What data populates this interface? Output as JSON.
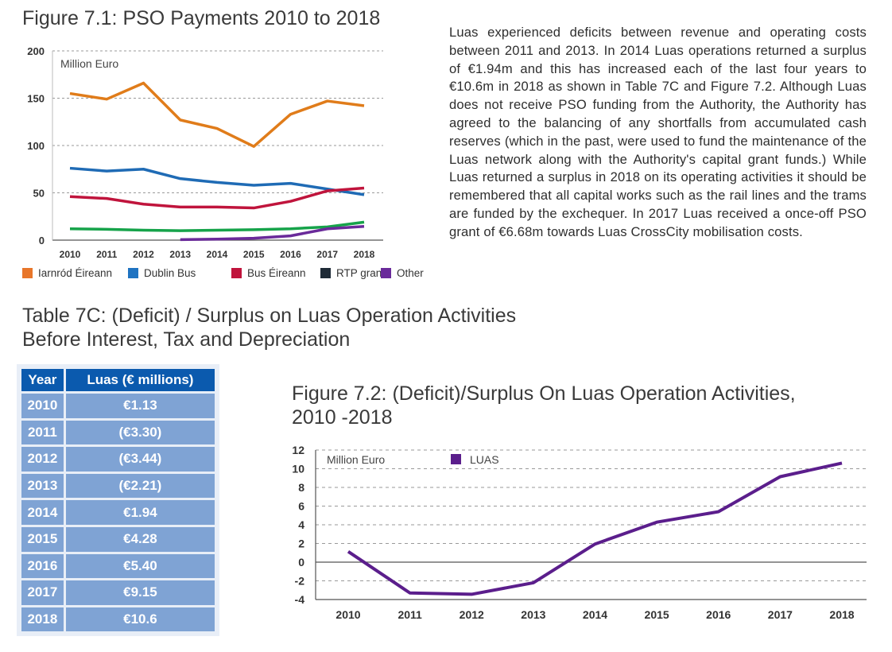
{
  "figure1": {
    "title": "Figure 7.1: PSO Payments 2010 to 2018",
    "unit_label": "Million Euro",
    "legend": [
      {
        "name": "Iarnród Éireann",
        "color": "#e8762a",
        "line_color": "#e07c1a"
      },
      {
        "name": "Dublin Bus",
        "color": "#1f73c1",
        "line_color": "#1f6bb5"
      },
      {
        "name": "Bus Éireann",
        "color": "#c0143c",
        "line_color": "#c0143c"
      },
      {
        "name": "RTP grant",
        "color": "#1e2a36",
        "line_color": "#16a34a"
      },
      {
        "name": "Other",
        "color": "#6a2a9a",
        "line_color": "#6a2a9a"
      }
    ]
  },
  "body_text": "Luas experienced deficits between revenue and operating costs between 2011 and 2013. In 2014 Luas operations returned a surplus of €1.94m and this has increased each of the last four years to €10.6m in 2018 as shown in Table 7C and Figure 7.2. Although Luas does not receive PSO funding from the Authority, the Authority has agreed to the balancing of any shortfalls from accumulated cash reserves (which in the past, were used to fund the maintenance of the Luas network along with the Authority's capital grant funds.) While Luas returned a surplus in 2018 on its operating activities it should be remembered that all capital works such as the rail lines and the trams are funded by the exchequer. In 2017 Luas received a once-off PSO grant of €6.68m towards Luas CrossCity mobilisation costs.",
  "table": {
    "title": "Table 7C: (Deficit) / Surplus on Luas Operation Activities Before Interest, Tax and Depreciation",
    "headers": [
      "Year",
      "Luas (€ millions)"
    ],
    "rows": [
      [
        "2010",
        "€1.13"
      ],
      [
        "2011",
        "(€3.30)"
      ],
      [
        "2012",
        "(€3.44)"
      ],
      [
        "2013",
        "(€2.21)"
      ],
      [
        "2014",
        "€1.94"
      ],
      [
        "2015",
        "€4.28"
      ],
      [
        "2016",
        "€5.40"
      ],
      [
        "2017",
        "€9.15"
      ],
      [
        "2018",
        "€10.6"
      ]
    ]
  },
  "figure2": {
    "title": "Figure 7.2: (Deficit)/Surplus On Luas Operation Activities, 2010 -2018",
    "unit_label": "Million Euro",
    "legend_label": "LUAS",
    "color": "#5b1e8c"
  },
  "chart_data": [
    {
      "type": "line",
      "title": "Figure 7.1: PSO Payments 2010 to 2018",
      "ylabel": "Million Euro",
      "x": [
        "2010",
        "2011",
        "2012",
        "2013",
        "2014",
        "2015",
        "2016",
        "2017",
        "2018"
      ],
      "ylim": [
        0,
        200
      ],
      "yticks": [
        0,
        50,
        100,
        150,
        200
      ],
      "series": [
        {
          "name": "Iarnród Éireann",
          "values": [
            155,
            149,
            166,
            127,
            118,
            99,
            133,
            147,
            142
          ]
        },
        {
          "name": "Dublin Bus",
          "values": [
            76,
            73,
            75,
            65,
            61,
            58,
            60,
            54,
            48
          ]
        },
        {
          "name": "Bus Éireann",
          "values": [
            46,
            44,
            38,
            35,
            35,
            34,
            41,
            52,
            55
          ]
        },
        {
          "name": "RTP grant",
          "values": [
            12,
            11.5,
            10.5,
            10,
            10.5,
            11,
            12,
            14,
            19
          ]
        },
        {
          "name": "Other",
          "values": [
            null,
            null,
            null,
            0.5,
            1,
            2,
            4.5,
            12,
            14.5
          ]
        }
      ],
      "legend": "bottom"
    },
    {
      "type": "line",
      "title": "Figure 7.2: (Deficit)/Surplus On Luas Operation Activities, 2010 -2018",
      "ylabel": "Million Euro",
      "x": [
        "2010",
        "2011",
        "2012",
        "2013",
        "2014",
        "2015",
        "2016",
        "2017",
        "2018"
      ],
      "ylim": [
        -4,
        12
      ],
      "yticks": [
        -4,
        -2,
        0,
        2,
        4,
        6,
        8,
        10,
        12
      ],
      "series": [
        {
          "name": "LUAS",
          "values": [
            1.13,
            -3.3,
            -3.44,
            -2.21,
            1.94,
            4.28,
            5.4,
            9.15,
            10.6
          ]
        }
      ],
      "legend": "top"
    }
  ]
}
